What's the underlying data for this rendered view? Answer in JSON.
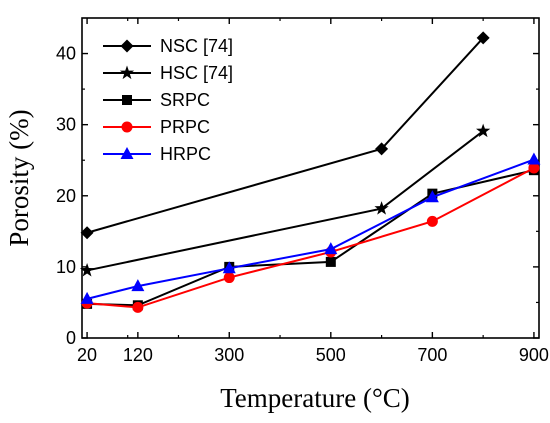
{
  "chart_data": {
    "type": "line",
    "xlabel": "Temperature (°C)",
    "ylabel": "Porosity (%)",
    "xlim": [
      10,
      910
    ],
    "ylim": [
      0,
      45
    ],
    "x_ticks": [
      20,
      120,
      300,
      500,
      700,
      900
    ],
    "y_ticks": [
      0,
      10,
      20,
      30,
      40
    ],
    "grid": false,
    "legend_position": "top-left",
    "series": [
      {
        "name": "NSC [74]",
        "color": "#000000",
        "marker": "diamond",
        "x": [
          20,
          600,
          800
        ],
        "y": [
          14.8,
          26.6,
          42.2
        ]
      },
      {
        "name": "HSC [74]",
        "color": "#000000",
        "marker": "star",
        "x": [
          20,
          600,
          800
        ],
        "y": [
          9.5,
          18.2,
          29.1
        ]
      },
      {
        "name": "SRPC",
        "color": "#000000",
        "marker": "square",
        "x": [
          20,
          120,
          300,
          500,
          700,
          900
        ],
        "y": [
          4.8,
          4.6,
          10.0,
          10.7,
          20.3,
          23.6
        ]
      },
      {
        "name": "PRPC",
        "color": "#ff0000",
        "marker": "circle",
        "x": [
          20,
          120,
          300,
          500,
          700,
          900
        ],
        "y": [
          4.9,
          4.3,
          8.5,
          12.1,
          16.4,
          23.9
        ]
      },
      {
        "name": "HRPC",
        "color": "#0000ff",
        "marker": "triangle",
        "x": [
          20,
          120,
          300,
          500,
          700,
          900
        ],
        "y": [
          5.5,
          7.3,
          9.8,
          12.5,
          19.8,
          25.1
        ]
      }
    ]
  }
}
